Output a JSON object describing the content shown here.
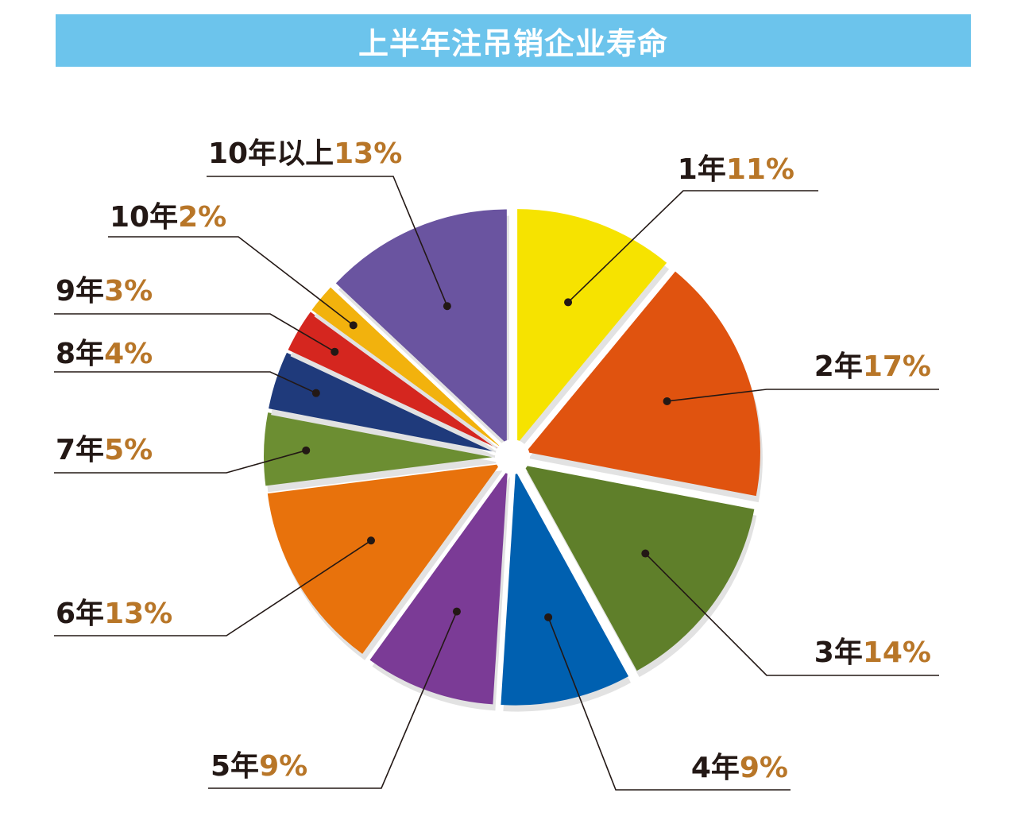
{
  "title": "上半年注吊销企业寿命",
  "chart_data": {
    "type": "pie",
    "title": "上半年注吊销企业寿命",
    "unit": "%",
    "slices": [
      {
        "label": "1年",
        "value": 11,
        "value_text": "11%",
        "color": "#f6e300"
      },
      {
        "label": "2年",
        "value": 17,
        "value_text": "17%",
        "color": "#e0530f"
      },
      {
        "label": "3年",
        "value": 14,
        "value_text": "14%",
        "color": "#5f7f2a"
      },
      {
        "label": "4年",
        "value": 9,
        "value_text": "9%",
        "color": "#0060b0"
      },
      {
        "label": "5年",
        "value": 9,
        "value_text": "9%",
        "color": "#7b3b96"
      },
      {
        "label": "6年",
        "value": 13,
        "value_text": "13%",
        "color": "#e8720c"
      },
      {
        "label": "7年",
        "value": 5,
        "value_text": "5%",
        "color": "#6c8e32"
      },
      {
        "label": "8年",
        "value": 4,
        "value_text": "4%",
        "color": "#1f3a7b"
      },
      {
        "label": "9年",
        "value": 3,
        "value_text": "3%",
        "color": "#d5261f"
      },
      {
        "label": "10年",
        "value": 2,
        "value_text": "2%",
        "color": "#f2b20d"
      },
      {
        "label": "10年以上",
        "value": 13,
        "value_text": "13%",
        "color": "#6a54a0"
      }
    ]
  }
}
